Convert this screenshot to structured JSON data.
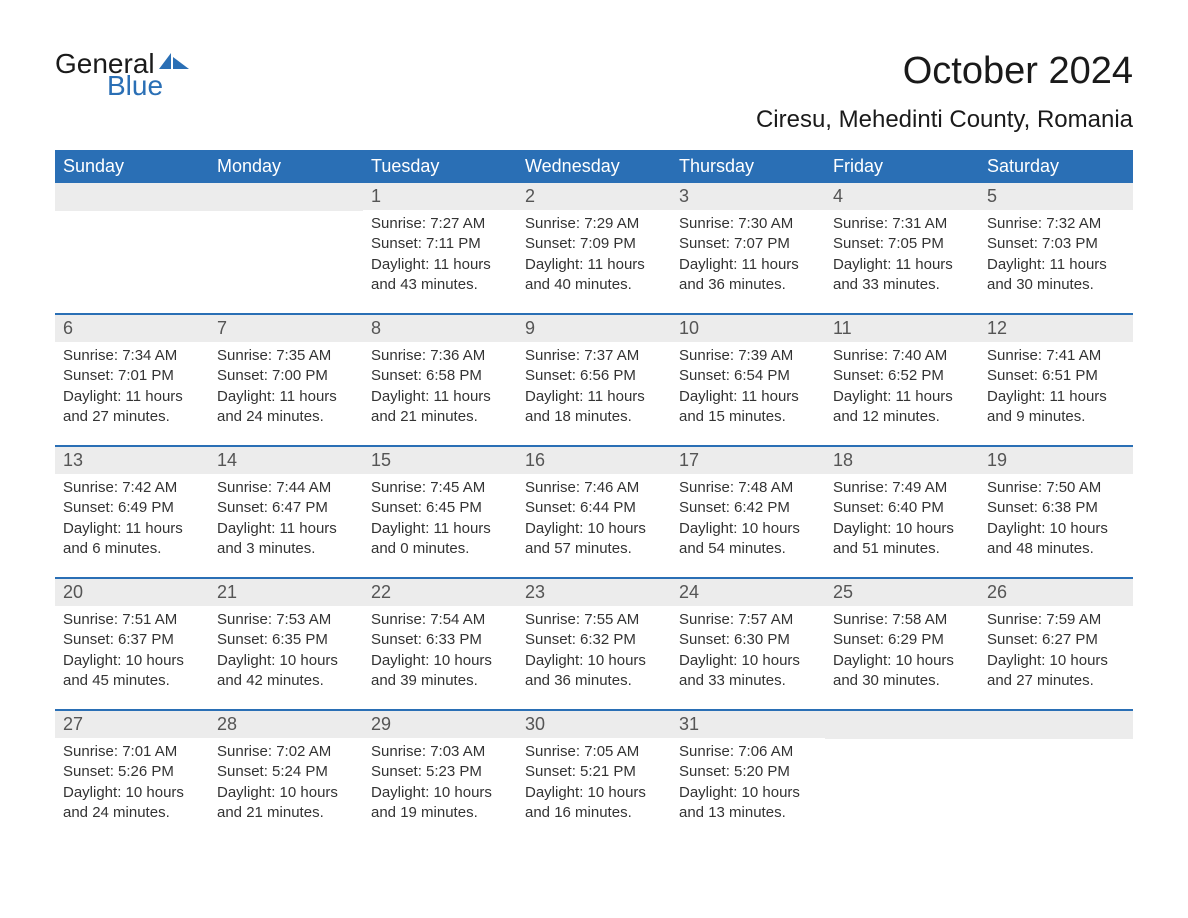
{
  "brand": {
    "word1": "General",
    "word2": "Blue",
    "text_color": "#1a1a1a",
    "accent_color": "#2a6fb5"
  },
  "title": "October 2024",
  "subtitle": "Ciresu, Mehedinti County, Romania",
  "colors": {
    "header_bg": "#2a6fb5",
    "header_text": "#ffffff",
    "daynum_bg": "#ececec",
    "daynum_text": "#555555",
    "body_text": "#333333",
    "week_divider": "#2a6fb5",
    "page_bg": "#ffffff"
  },
  "day_headers": [
    "Sunday",
    "Monday",
    "Tuesday",
    "Wednesday",
    "Thursday",
    "Friday",
    "Saturday"
  ],
  "weeks": [
    [
      {
        "num": "",
        "lines": []
      },
      {
        "num": "",
        "lines": []
      },
      {
        "num": "1",
        "lines": [
          "Sunrise: 7:27 AM",
          "Sunset: 7:11 PM",
          "Daylight: 11 hours and 43 minutes."
        ]
      },
      {
        "num": "2",
        "lines": [
          "Sunrise: 7:29 AM",
          "Sunset: 7:09 PM",
          "Daylight: 11 hours and 40 minutes."
        ]
      },
      {
        "num": "3",
        "lines": [
          "Sunrise: 7:30 AM",
          "Sunset: 7:07 PM",
          "Daylight: 11 hours and 36 minutes."
        ]
      },
      {
        "num": "4",
        "lines": [
          "Sunrise: 7:31 AM",
          "Sunset: 7:05 PM",
          "Daylight: 11 hours and 33 minutes."
        ]
      },
      {
        "num": "5",
        "lines": [
          "Sunrise: 7:32 AM",
          "Sunset: 7:03 PM",
          "Daylight: 11 hours and 30 minutes."
        ]
      }
    ],
    [
      {
        "num": "6",
        "lines": [
          "Sunrise: 7:34 AM",
          "Sunset: 7:01 PM",
          "Daylight: 11 hours and 27 minutes."
        ]
      },
      {
        "num": "7",
        "lines": [
          "Sunrise: 7:35 AM",
          "Sunset: 7:00 PM",
          "Daylight: 11 hours and 24 minutes."
        ]
      },
      {
        "num": "8",
        "lines": [
          "Sunrise: 7:36 AM",
          "Sunset: 6:58 PM",
          "Daylight: 11 hours and 21 minutes."
        ]
      },
      {
        "num": "9",
        "lines": [
          "Sunrise: 7:37 AM",
          "Sunset: 6:56 PM",
          "Daylight: 11 hours and 18 minutes."
        ]
      },
      {
        "num": "10",
        "lines": [
          "Sunrise: 7:39 AM",
          "Sunset: 6:54 PM",
          "Daylight: 11 hours and 15 minutes."
        ]
      },
      {
        "num": "11",
        "lines": [
          "Sunrise: 7:40 AM",
          "Sunset: 6:52 PM",
          "Daylight: 11 hours and 12 minutes."
        ]
      },
      {
        "num": "12",
        "lines": [
          "Sunrise: 7:41 AM",
          "Sunset: 6:51 PM",
          "Daylight: 11 hours and 9 minutes."
        ]
      }
    ],
    [
      {
        "num": "13",
        "lines": [
          "Sunrise: 7:42 AM",
          "Sunset: 6:49 PM",
          "Daylight: 11 hours and 6 minutes."
        ]
      },
      {
        "num": "14",
        "lines": [
          "Sunrise: 7:44 AM",
          "Sunset: 6:47 PM",
          "Daylight: 11 hours and 3 minutes."
        ]
      },
      {
        "num": "15",
        "lines": [
          "Sunrise: 7:45 AM",
          "Sunset: 6:45 PM",
          "Daylight: 11 hours and 0 minutes."
        ]
      },
      {
        "num": "16",
        "lines": [
          "Sunrise: 7:46 AM",
          "Sunset: 6:44 PM",
          "Daylight: 10 hours and 57 minutes."
        ]
      },
      {
        "num": "17",
        "lines": [
          "Sunrise: 7:48 AM",
          "Sunset: 6:42 PM",
          "Daylight: 10 hours and 54 minutes."
        ]
      },
      {
        "num": "18",
        "lines": [
          "Sunrise: 7:49 AM",
          "Sunset: 6:40 PM",
          "Daylight: 10 hours and 51 minutes."
        ]
      },
      {
        "num": "19",
        "lines": [
          "Sunrise: 7:50 AM",
          "Sunset: 6:38 PM",
          "Daylight: 10 hours and 48 minutes."
        ]
      }
    ],
    [
      {
        "num": "20",
        "lines": [
          "Sunrise: 7:51 AM",
          "Sunset: 6:37 PM",
          "Daylight: 10 hours and 45 minutes."
        ]
      },
      {
        "num": "21",
        "lines": [
          "Sunrise: 7:53 AM",
          "Sunset: 6:35 PM",
          "Daylight: 10 hours and 42 minutes."
        ]
      },
      {
        "num": "22",
        "lines": [
          "Sunrise: 7:54 AM",
          "Sunset: 6:33 PM",
          "Daylight: 10 hours and 39 minutes."
        ]
      },
      {
        "num": "23",
        "lines": [
          "Sunrise: 7:55 AM",
          "Sunset: 6:32 PM",
          "Daylight: 10 hours and 36 minutes."
        ]
      },
      {
        "num": "24",
        "lines": [
          "Sunrise: 7:57 AM",
          "Sunset: 6:30 PM",
          "Daylight: 10 hours and 33 minutes."
        ]
      },
      {
        "num": "25",
        "lines": [
          "Sunrise: 7:58 AM",
          "Sunset: 6:29 PM",
          "Daylight: 10 hours and 30 minutes."
        ]
      },
      {
        "num": "26",
        "lines": [
          "Sunrise: 7:59 AM",
          "Sunset: 6:27 PM",
          "Daylight: 10 hours and 27 minutes."
        ]
      }
    ],
    [
      {
        "num": "27",
        "lines": [
          "Sunrise: 7:01 AM",
          "Sunset: 5:26 PM",
          "Daylight: 10 hours and 24 minutes."
        ]
      },
      {
        "num": "28",
        "lines": [
          "Sunrise: 7:02 AM",
          "Sunset: 5:24 PM",
          "Daylight: 10 hours and 21 minutes."
        ]
      },
      {
        "num": "29",
        "lines": [
          "Sunrise: 7:03 AM",
          "Sunset: 5:23 PM",
          "Daylight: 10 hours and 19 minutes."
        ]
      },
      {
        "num": "30",
        "lines": [
          "Sunrise: 7:05 AM",
          "Sunset: 5:21 PM",
          "Daylight: 10 hours and 16 minutes."
        ]
      },
      {
        "num": "31",
        "lines": [
          "Sunrise: 7:06 AM",
          "Sunset: 5:20 PM",
          "Daylight: 10 hours and 13 minutes."
        ]
      },
      {
        "num": "",
        "lines": []
      },
      {
        "num": "",
        "lines": []
      }
    ]
  ]
}
